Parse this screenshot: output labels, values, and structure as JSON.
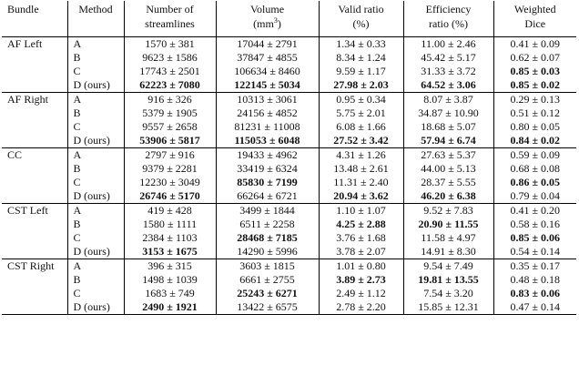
{
  "headers": {
    "bundle": "Bundle",
    "method": "Method",
    "num_line1": "Number of",
    "num_line2": "streamlines",
    "vol_line1": "Volume",
    "vol_line2_pre": "(mm",
    "vol_line2_sup": "3",
    "vol_line2_post": ")",
    "valid_line1": "Valid ratio",
    "valid_line2": "(%)",
    "eff_line1": "Efficiency",
    "eff_line2": "ratio (%)",
    "dice_line1": "Weighted",
    "dice_line2": "Dice"
  },
  "groups": [
    {
      "bundle": "AF Left",
      "rows": [
        {
          "method": "A",
          "num": "1570 ±  381",
          "num_b": false,
          "vol": "17044 ±  2791",
          "vol_b": false,
          "valid": "1.34 ± 0.33",
          "valid_b": false,
          "eff": "11.00 ±  2.46",
          "eff_b": false,
          "dice": "0.41 ± 0.09",
          "dice_b": false
        },
        {
          "method": "B",
          "num": "9623 ± 1586",
          "num_b": false,
          "vol": "37847 ±  4855",
          "vol_b": false,
          "valid": "8.34 ± 1.24",
          "valid_b": false,
          "eff": "45.42 ±  5.17",
          "eff_b": false,
          "dice": "0.62 ± 0.07",
          "dice_b": false
        },
        {
          "method": "C",
          "num": "17743 ± 2501",
          "num_b": false,
          "vol": "106634 ±  8460",
          "vol_b": false,
          "valid": "9.59 ± 1.17",
          "valid_b": false,
          "eff": "31.33 ±  3.72",
          "eff_b": false,
          "dice": "0.85 ± 0.03",
          "dice_b": true
        },
        {
          "method": "D (ours)",
          "num": "62223 ± 7080",
          "num_b": true,
          "vol": "122145 ±  5034",
          "vol_b": true,
          "valid": "27.98 ± 2.03",
          "valid_b": true,
          "eff": "64.52 ±  3.06",
          "eff_b": true,
          "dice": "0.85 ± 0.02",
          "dice_b": true
        }
      ]
    },
    {
      "bundle": "AF Right",
      "rows": [
        {
          "method": "A",
          "num": "916 ±  326",
          "num_b": false,
          "vol": "10313 ±  3061",
          "vol_b": false,
          "valid": "0.95 ± 0.34",
          "valid_b": false,
          "eff": "8.07 ±  3.87",
          "eff_b": false,
          "dice": "0.29 ± 0.13",
          "dice_b": false
        },
        {
          "method": "B",
          "num": "5379 ± 1905",
          "num_b": false,
          "vol": "24156 ±  4852",
          "vol_b": false,
          "valid": "5.75 ± 2.01",
          "valid_b": false,
          "eff": "34.87 ± 10.90",
          "eff_b": false,
          "dice": "0.51 ± 0.12",
          "dice_b": false
        },
        {
          "method": "C",
          "num": "9557 ± 2658",
          "num_b": false,
          "vol": "81231 ± 11008",
          "vol_b": false,
          "valid": "6.08 ± 1.66",
          "valid_b": false,
          "eff": "18.68 ±  5.07",
          "eff_b": false,
          "dice": "0.80 ± 0.05",
          "dice_b": false
        },
        {
          "method": "D (ours)",
          "num": "53906 ± 5817",
          "num_b": true,
          "vol": "115053 ±  6048",
          "vol_b": true,
          "valid": "27.52 ± 3.42",
          "valid_b": true,
          "eff": "57.94 ±  6.74",
          "eff_b": true,
          "dice": "0.84 ± 0.02",
          "dice_b": true
        }
      ]
    },
    {
      "bundle": "CC",
      "rows": [
        {
          "method": "A",
          "num": "2797 ±  916",
          "num_b": false,
          "vol": "19433 ±  4962",
          "vol_b": false,
          "valid": "4.31 ± 1.26",
          "valid_b": false,
          "eff": "27.63 ±  5.37",
          "eff_b": false,
          "dice": "0.59 ± 0.09",
          "dice_b": false
        },
        {
          "method": "B",
          "num": "9379 ± 2281",
          "num_b": false,
          "vol": "33419 ±  6324",
          "vol_b": false,
          "valid": "13.48 ± 2.61",
          "valid_b": false,
          "eff": "44.00 ±  5.13",
          "eff_b": false,
          "dice": "0.68 ± 0.08",
          "dice_b": false
        },
        {
          "method": "C",
          "num": "12230 ± 3049",
          "num_b": false,
          "vol": "85830 ±  7199",
          "vol_b": true,
          "valid": "11.31 ± 2.40",
          "valid_b": false,
          "eff": "28.37 ±  5.55",
          "eff_b": false,
          "dice": "0.86 ± 0.05",
          "dice_b": true
        },
        {
          "method": "D (ours)",
          "num": "26746 ± 5170",
          "num_b": true,
          "vol": "66264 ±  6721",
          "vol_b": false,
          "valid": "20.94 ± 3.62",
          "valid_b": true,
          "eff": "46.20 ±  6.38",
          "eff_b": true,
          "dice": "0.79 ± 0.04",
          "dice_b": false
        }
      ]
    },
    {
      "bundle": "CST Left",
      "rows": [
        {
          "method": "A",
          "num": "419 ±  428",
          "num_b": false,
          "vol": "3499 ±  1844",
          "vol_b": false,
          "valid": "1.10 ± 1.07",
          "valid_b": false,
          "eff": "9.52 ±  7.83",
          "eff_b": false,
          "dice": "0.41 ± 0.20",
          "dice_b": false
        },
        {
          "method": "B",
          "num": "1580 ± 1111",
          "num_b": false,
          "vol": "6511 ±  2258",
          "vol_b": false,
          "valid": "4.25 ± 2.88",
          "valid_b": true,
          "eff": "20.90 ± 11.55",
          "eff_b": true,
          "dice": "0.58 ± 0.16",
          "dice_b": false
        },
        {
          "method": "C",
          "num": "2384 ± 1103",
          "num_b": false,
          "vol": "28468 ±  7185",
          "vol_b": true,
          "valid": "3.76 ± 1.68",
          "valid_b": false,
          "eff": "11.58 ±  4.97",
          "eff_b": false,
          "dice": "0.85 ± 0.06",
          "dice_b": true
        },
        {
          "method": "D (ours)",
          "num": "3153 ± 1675",
          "num_b": true,
          "vol": "14290 ±  5996",
          "vol_b": false,
          "valid": "3.78 ± 2.07",
          "valid_b": false,
          "eff": "14.91 ±  8.30",
          "eff_b": false,
          "dice": "0.54 ± 0.14",
          "dice_b": false
        }
      ]
    },
    {
      "bundle": "CST Right",
      "rows": [
        {
          "method": "A",
          "num": "396 ±  315",
          "num_b": false,
          "vol": "3603 ±  1815",
          "vol_b": false,
          "valid": "1.01 ± 0.80",
          "valid_b": false,
          "eff": "9.54 ±  7.49",
          "eff_b": false,
          "dice": "0.35 ± 0.17",
          "dice_b": false
        },
        {
          "method": "B",
          "num": "1498 ± 1039",
          "num_b": false,
          "vol": "6661 ±  2755",
          "vol_b": false,
          "valid": "3.89 ± 2.73",
          "valid_b": true,
          "eff": "19.81 ± 13.55",
          "eff_b": true,
          "dice": "0.48 ± 0.18",
          "dice_b": false
        },
        {
          "method": "C",
          "num": "1683 ±  749",
          "num_b": false,
          "vol": "25243 ±  6271",
          "vol_b": true,
          "valid": "2.49 ± 1.12",
          "valid_b": false,
          "eff": "7.54 ±  3.20",
          "eff_b": false,
          "dice": "0.83 ± 0.06",
          "dice_b": true
        },
        {
          "method": "D (ours)",
          "num": "2490 ± 1921",
          "num_b": true,
          "vol": "13422 ±  6575",
          "vol_b": false,
          "valid": "2.78 ± 2.20",
          "valid_b": false,
          "eff": "15.85 ± 12.31",
          "eff_b": false,
          "dice": "0.47 ± 0.14",
          "dice_b": false
        }
      ]
    }
  ]
}
